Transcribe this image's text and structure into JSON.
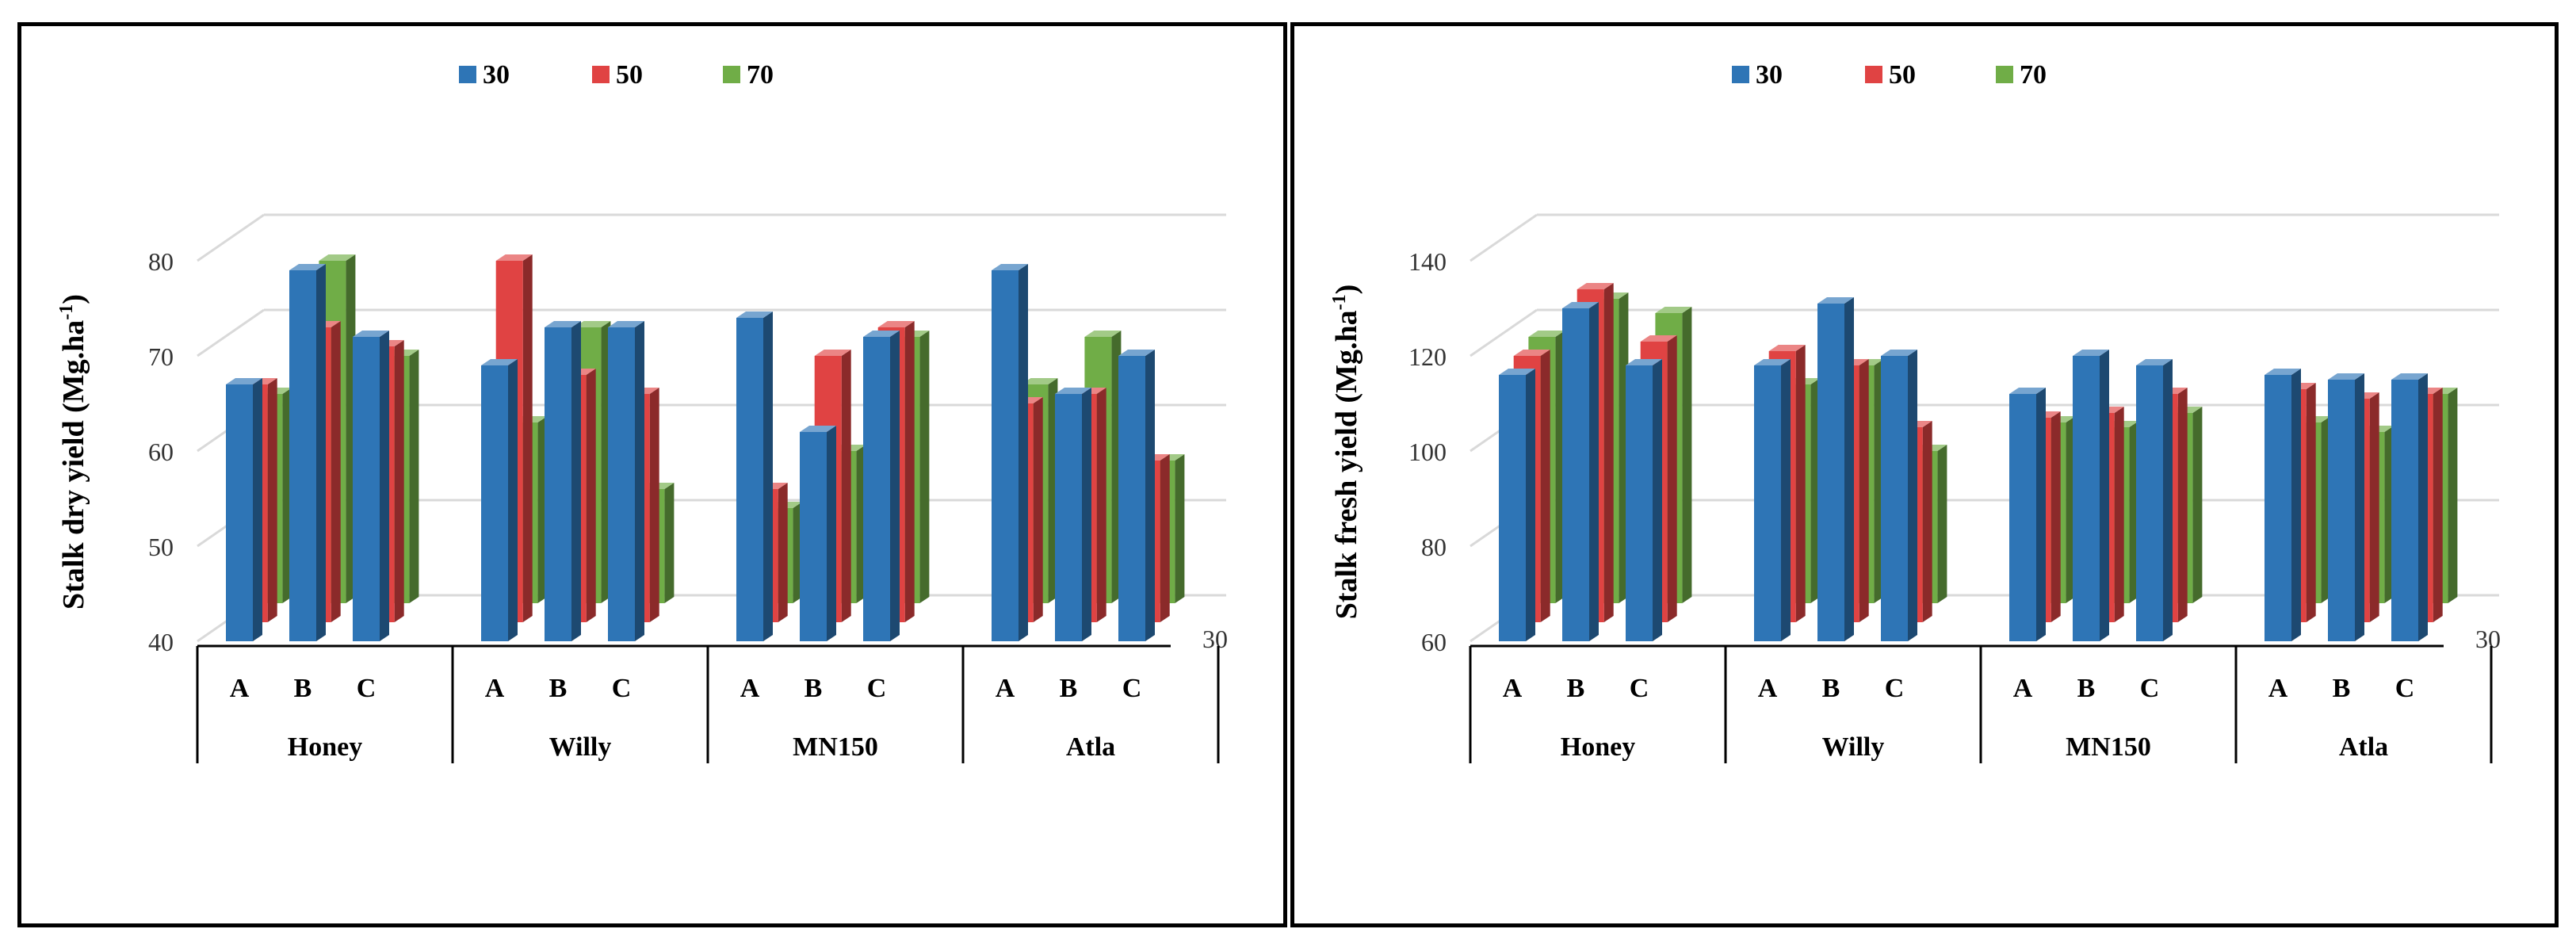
{
  "legend_colors": {
    "30": "#2E75B6",
    "50": "#E04343",
    "70": "#70AD47"
  },
  "chart_data": [
    {
      "type": "bar",
      "title": "",
      "ylabel": "Stalk dry yield (Mg.ha",
      "ylabel_sup": "-1",
      "ylabel_close": ")",
      "ylim": [
        40,
        80
      ],
      "yticks": [
        "40",
        "50",
        "60",
        "70",
        "80"
      ],
      "depth_label": "30",
      "legend": [
        "30",
        "50",
        "70"
      ],
      "groups": [
        "Honey",
        "Willy",
        "MN150",
        "Atla"
      ],
      "categories": [
        "A",
        "B",
        "C"
      ],
      "series": [
        {
          "name": "30",
          "values": [
            [
              67,
              79,
              72
            ],
            [
              69,
              73,
              73
            ],
            [
              74,
              62,
              72
            ],
            [
              79,
              66,
              70
            ]
          ]
        },
        {
          "name": "50",
          "values": [
            [
              65,
              71,
              69
            ],
            [
              78,
              66,
              64
            ],
            [
              54,
              68,
              71
            ],
            [
              63,
              64,
              57
            ]
          ]
        },
        {
          "name": "70",
          "values": [
            [
              62,
              76,
              66
            ],
            [
              59,
              69,
              52
            ],
            [
              50,
              56,
              68
            ],
            [
              63,
              68,
              55
            ]
          ]
        }
      ]
    },
    {
      "type": "bar",
      "title": "",
      "ylabel": "Stalk fresh yield (Mg.ha",
      "ylabel_sup": "-1",
      "ylabel_close": ")",
      "ylim": [
        60,
        140
      ],
      "yticks": [
        "60",
        "80",
        "100",
        "120",
        "140"
      ],
      "depth_label": "30",
      "legend": [
        "30",
        "50",
        "70"
      ],
      "groups": [
        "Honey",
        "Willy",
        "MN150",
        "Atla"
      ],
      "categories": [
        "A",
        "B",
        "C"
      ],
      "series": [
        {
          "name": "30",
          "values": [
            [
              116,
              130,
              118
            ],
            [
              118,
              131,
              120
            ],
            [
              112,
              120,
              118
            ],
            [
              116,
              115,
              115
            ]
          ]
        },
        {
          "name": "50",
          "values": [
            [
              116,
              130,
              119
            ],
            [
              117,
              114,
              101
            ],
            [
              103,
              104,
              108
            ],
            [
              109,
              107,
              108
            ]
          ]
        },
        {
          "name": "70",
          "values": [
            [
              116,
              124,
              121
            ],
            [
              106,
              110,
              92
            ],
            [
              98,
              97,
              100
            ],
            [
              98,
              96,
              104
            ]
          ]
        }
      ]
    }
  ]
}
